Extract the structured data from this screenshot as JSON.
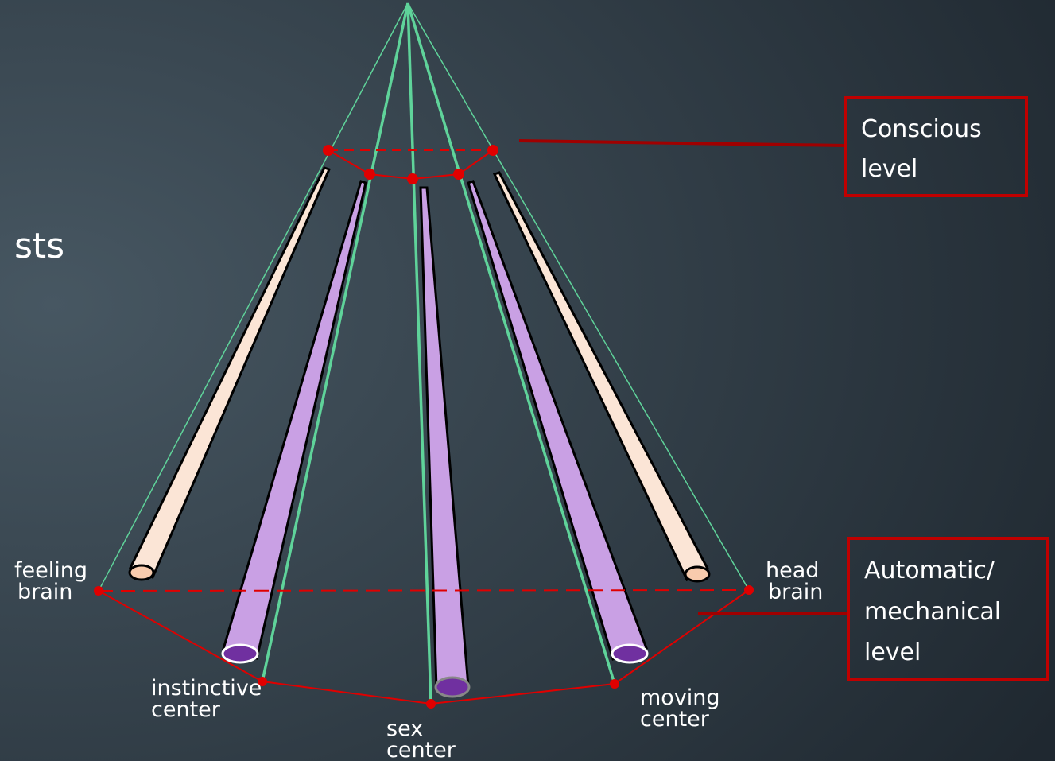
{
  "slide_text": "sts",
  "boxes": [
    {
      "lines": [
        "Conscious",
        "level"
      ]
    },
    {
      "lines": [
        "Automatic/",
        "mechanical",
        "level"
      ]
    }
  ],
  "nodes": [
    {
      "lines": [
        "feeling",
        "brain"
      ]
    },
    {
      "lines": [
        "head",
        "brain"
      ]
    },
    {
      "lines": [
        "instinctive",
        "center"
      ]
    },
    {
      "lines": [
        "sex",
        "center"
      ]
    },
    {
      "lines": [
        "moving",
        "center"
      ]
    }
  ]
}
